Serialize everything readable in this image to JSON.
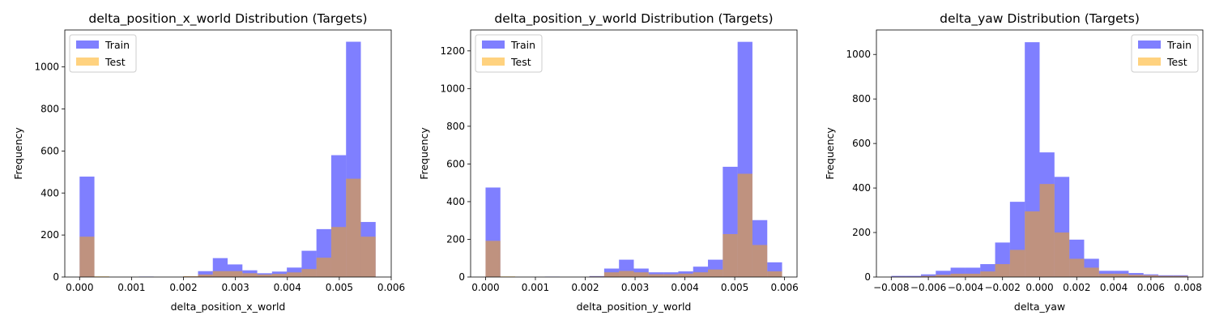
{
  "chart_data": [
    {
      "type": "histogram",
      "title": "delta_position_x_world Distribution (Targets)",
      "xlabel": "delta_position_x_world",
      "ylabel": "Frequency",
      "xlim": [
        -0.000285,
        0.006
      ],
      "ylim": [
        0,
        1176
      ],
      "xticks": [
        0.0,
        0.001,
        0.002,
        0.003,
        0.004,
        0.005,
        0.006
      ],
      "xtick_labels": [
        "0.000",
        "0.001",
        "0.002",
        "0.003",
        "0.004",
        "0.005",
        "0.006"
      ],
      "yticks": [
        0,
        200,
        400,
        600,
        800,
        1000
      ],
      "ytick_labels": [
        "0",
        "200",
        "400",
        "600",
        "800",
        "1000"
      ],
      "bin_start": 0.0,
      "bin_end": 0.0057,
      "legend": "top-left",
      "grid": false,
      "series": [
        {
          "name": "Train",
          "color": "#0000ff",
          "alpha": 0.5,
          "values": [
            478,
            0,
            0,
            0,
            2,
            0,
            0,
            3,
            28,
            90,
            60,
            32,
            18,
            26,
            45,
            125,
            228,
            580,
            1120,
            262
          ]
        },
        {
          "name": "Test",
          "color": "#ffa500",
          "alpha": 0.5,
          "values": [
            192,
            3,
            0,
            0,
            0,
            0,
            0,
            4,
            12,
            28,
            28,
            18,
            12,
            15,
            22,
            38,
            92,
            238,
            468,
            192
          ]
        }
      ]
    },
    {
      "type": "histogram",
      "title": "delta_position_y_world Distribution (Targets)",
      "xlabel": "delta_position_y_world",
      "ylabel": "Frequency",
      "xlim": [
        -0.0003,
        0.00625
      ],
      "ylim": [
        0,
        1311
      ],
      "xticks": [
        0.0,
        0.001,
        0.002,
        0.003,
        0.004,
        0.005,
        0.006
      ],
      "xtick_labels": [
        "0.000",
        "0.001",
        "0.002",
        "0.003",
        "0.004",
        "0.005",
        "0.006"
      ],
      "yticks": [
        0,
        200,
        400,
        600,
        800,
        1000,
        1200
      ],
      "ytick_labels": [
        "0",
        "200",
        "400",
        "600",
        "800",
        "1000",
        "1200"
      ],
      "bin_start": 0.0,
      "bin_end": 0.00595,
      "legend": "top-left",
      "grid": false,
      "series": [
        {
          "name": "Train",
          "color": "#0000ff",
          "alpha": 0.5,
          "values": [
            475,
            0,
            0,
            0,
            2,
            0,
            0,
            5,
            45,
            92,
            45,
            25,
            25,
            30,
            55,
            92,
            585,
            1248,
            302,
            78
          ]
        },
        {
          "name": "Test",
          "color": "#ffa500",
          "alpha": 0.5,
          "values": [
            192,
            3,
            0,
            0,
            0,
            0,
            0,
            3,
            25,
            32,
            25,
            15,
            15,
            18,
            25,
            40,
            228,
            548,
            170,
            30
          ]
        }
      ]
    },
    {
      "type": "histogram",
      "title": "delta_yaw Distribution (Targets)",
      "xlabel": "delta_yaw",
      "ylabel": "Frequency",
      "xlim": [
        -0.0088,
        0.0088
      ],
      "ylim": [
        0,
        1110
      ],
      "xticks": [
        -0.008,
        -0.006,
        -0.004,
        -0.002,
        0.0,
        0.002,
        0.004,
        0.006,
        0.008
      ],
      "xtick_labels": [
        "−0.008",
        "−0.006",
        "−0.004",
        "−0.002",
        "0.000",
        "0.002",
        "0.004",
        "0.006",
        "0.008"
      ],
      "yticks": [
        0,
        200,
        400,
        600,
        800,
        1000
      ],
      "ytick_labels": [
        "0",
        "200",
        "400",
        "600",
        "800",
        "1000"
      ],
      "bin_start": -0.008,
      "bin_end": 0.008,
      "legend": "top-right",
      "grid": false,
      "series": [
        {
          "name": "Train",
          "color": "#0000ff",
          "alpha": 0.5,
          "values": [
            5,
            5,
            12,
            28,
            42,
            42,
            58,
            155,
            338,
            1055,
            560,
            450,
            168,
            82,
            28,
            28,
            18,
            12,
            8,
            8
          ]
        },
        {
          "name": "Test",
          "color": "#ffa500",
          "alpha": 0.5,
          "values": [
            2,
            2,
            5,
            10,
            15,
            15,
            25,
            58,
            122,
            295,
            418,
            200,
            82,
            42,
            15,
            15,
            10,
            8,
            5,
            5
          ]
        }
      ]
    }
  ]
}
